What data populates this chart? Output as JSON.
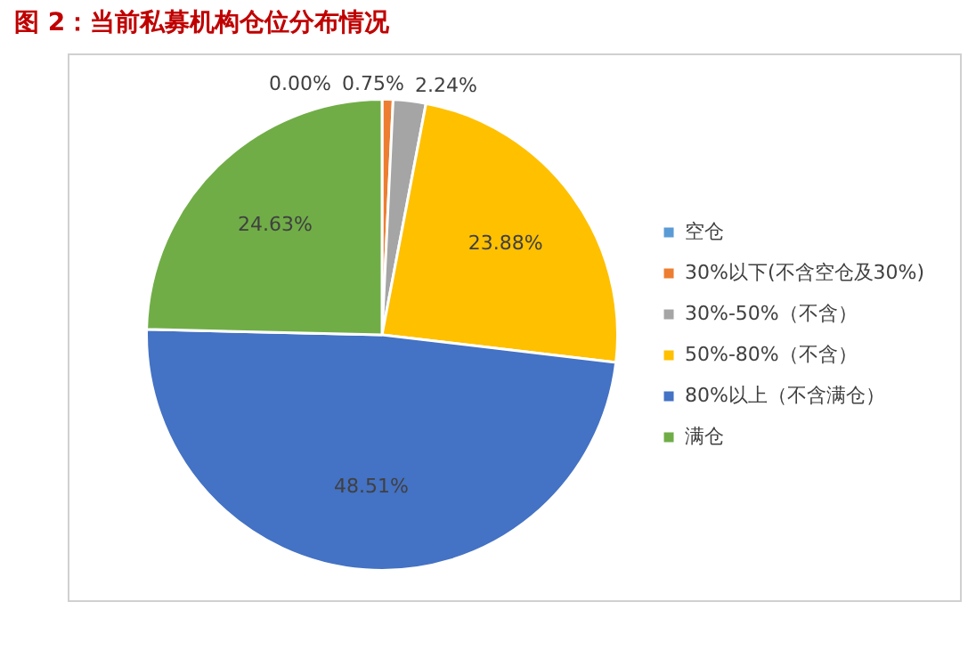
{
  "chart_data": {
    "type": "pie",
    "title": "图 2：当前私募机构仓位分布情况",
    "categories": [
      "空仓",
      "30%以下(不含空仓及30%)",
      "30%-50%（不含）",
      "50%-80%（不含）",
      "80%以上（不含满仓）",
      "满仓"
    ],
    "values": [
      0.0,
      0.75,
      2.24,
      23.88,
      48.51,
      24.63
    ],
    "colors": [
      "#5b9bd5",
      "#ed7d31",
      "#a5a5a5",
      "#ffc000",
      "#4472c4",
      "#70ad47"
    ],
    "value_labels": [
      "0.00%",
      "0.75%",
      "2.24%",
      "23.88%",
      "48.51%",
      "24.63%"
    ],
    "legend": "right"
  }
}
